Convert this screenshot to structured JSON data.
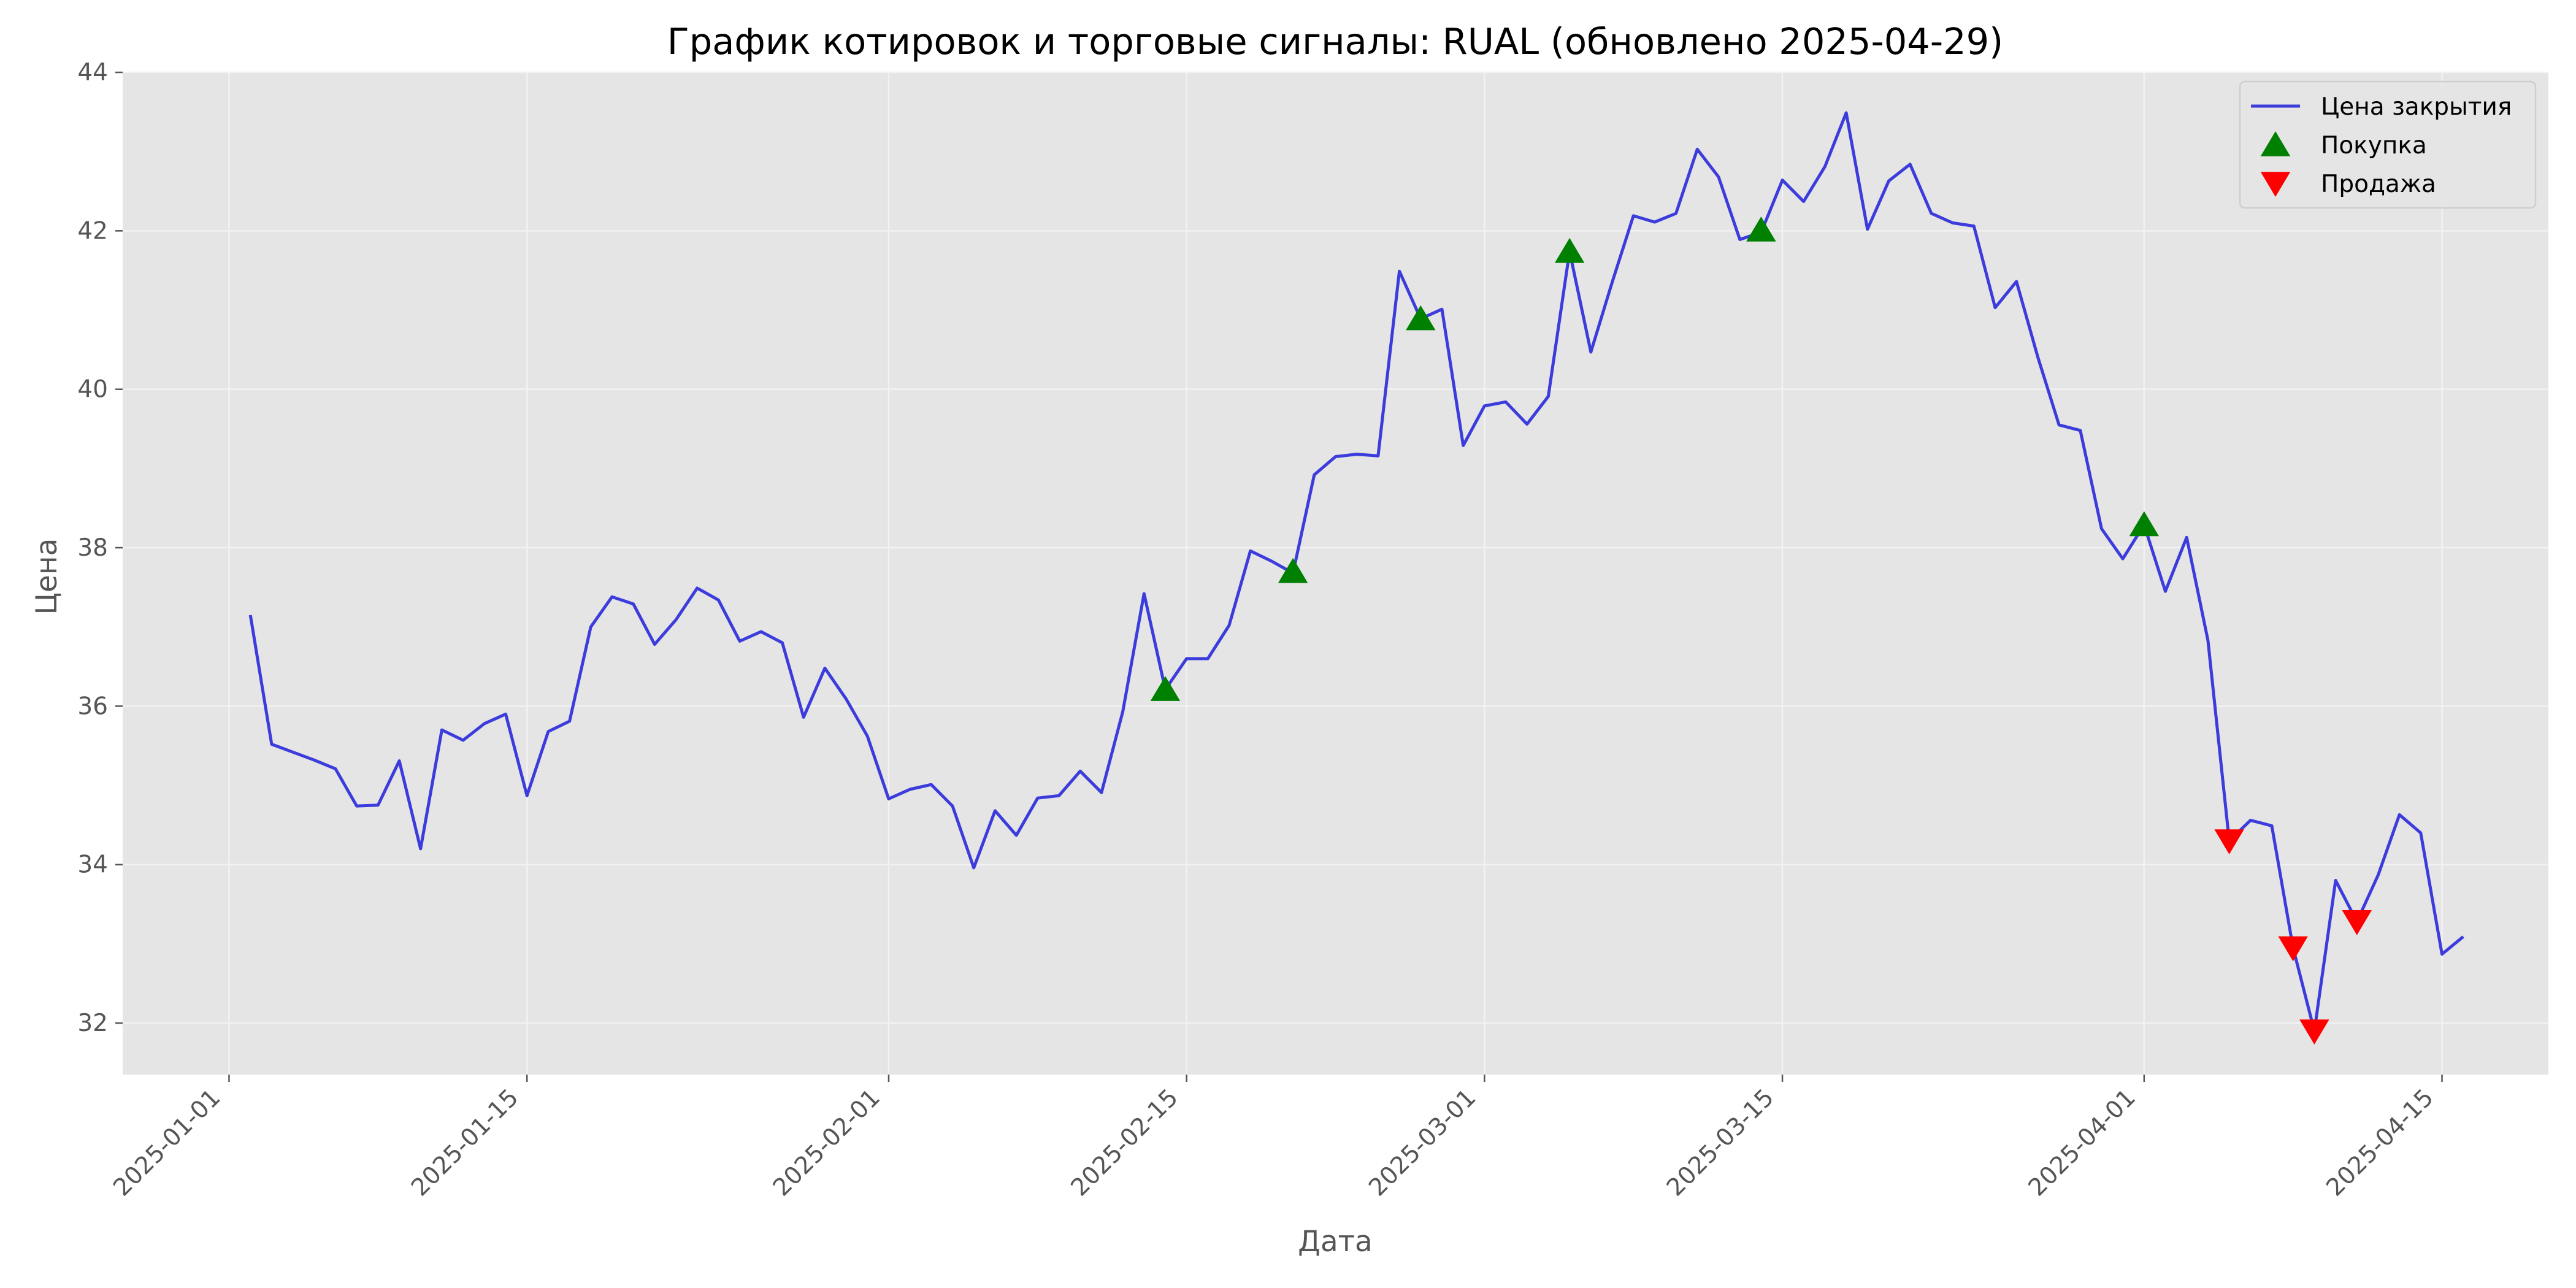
{
  "chart_data": {
    "type": "line",
    "title": "График котировок и торговые сигналы: RUAL (обновлено 2025-04-29)",
    "xlabel": "Дата",
    "ylabel": "Цена",
    "x_ticks": [
      "2025-01-01",
      "2025-01-15",
      "2025-02-01",
      "2025-02-15",
      "2025-03-01",
      "2025-03-15",
      "2025-04-01",
      "2025-04-15"
    ],
    "y_ticks": [
      32,
      34,
      36,
      38,
      40,
      42,
      44
    ],
    "xlim": [
      "2024-12-27",
      "2025-04-20"
    ],
    "ylim": [
      31.35,
      44.0
    ],
    "grid": true,
    "legend_position": "top-right",
    "colors": {
      "close": "#3c3cdc",
      "buy": "#008000",
      "sell": "#ff0000",
      "plot_bg": "#e5e5e5",
      "grid": "#f2f2f2"
    },
    "series": [
      {
        "name": "Цена закрытия",
        "kind": "line",
        "points": [
          [
            "2025-01-02",
            37.15
          ],
          [
            "2025-01-03",
            35.52
          ],
          [
            "2025-01-04",
            35.42
          ],
          [
            "2025-01-05",
            35.32
          ],
          [
            "2025-01-06",
            35.21
          ],
          [
            "2025-01-07",
            34.74
          ],
          [
            "2025-01-08",
            34.75
          ],
          [
            "2025-01-09",
            35.31
          ],
          [
            "2025-01-10",
            34.2
          ],
          [
            "2025-01-11",
            35.7
          ],
          [
            "2025-01-12",
            35.57
          ],
          [
            "2025-01-13",
            35.78
          ],
          [
            "2025-01-14",
            35.9
          ],
          [
            "2025-01-15",
            34.87
          ],
          [
            "2025-01-16",
            35.68
          ],
          [
            "2025-01-17",
            35.81
          ],
          [
            "2025-01-18",
            37.0
          ],
          [
            "2025-01-19",
            37.38
          ],
          [
            "2025-01-20",
            37.29
          ],
          [
            "2025-01-21",
            36.78
          ],
          [
            "2025-01-22",
            37.09
          ],
          [
            "2025-01-23",
            37.49
          ],
          [
            "2025-01-24",
            37.34
          ],
          [
            "2025-01-25",
            36.82
          ],
          [
            "2025-01-26",
            36.94
          ],
          [
            "2025-01-27",
            36.8
          ],
          [
            "2025-01-28",
            35.86
          ],
          [
            "2025-01-29",
            36.48
          ],
          [
            "2025-01-30",
            36.09
          ],
          [
            "2025-01-31",
            35.62
          ],
          [
            "2025-02-01",
            34.83
          ],
          [
            "2025-02-02",
            34.95
          ],
          [
            "2025-02-03",
            35.01
          ],
          [
            "2025-02-04",
            34.74
          ],
          [
            "2025-02-05",
            33.96
          ],
          [
            "2025-02-06",
            34.68
          ],
          [
            "2025-02-07",
            34.37
          ],
          [
            "2025-02-08",
            34.84
          ],
          [
            "2025-02-09",
            34.87
          ],
          [
            "2025-02-10",
            35.18
          ],
          [
            "2025-02-11",
            34.91
          ],
          [
            "2025-02-12",
            35.93
          ],
          [
            "2025-02-13",
            37.42
          ],
          [
            "2025-02-14",
            36.21
          ],
          [
            "2025-02-15",
            36.6
          ],
          [
            "2025-02-16",
            36.6
          ],
          [
            "2025-02-17",
            37.02
          ],
          [
            "2025-02-18",
            37.96
          ],
          [
            "2025-02-19",
            37.83
          ],
          [
            "2025-02-20",
            37.68
          ],
          [
            "2025-02-21",
            38.92
          ],
          [
            "2025-02-22",
            39.15
          ],
          [
            "2025-02-23",
            39.18
          ],
          [
            "2025-02-24",
            39.16
          ],
          [
            "2025-02-25",
            41.49
          ],
          [
            "2025-02-26",
            40.89
          ],
          [
            "2025-02-27",
            41.01
          ],
          [
            "2025-02-28",
            39.29
          ],
          [
            "2025-03-01",
            39.79
          ],
          [
            "2025-03-02",
            39.84
          ],
          [
            "2025-03-03",
            39.56
          ],
          [
            "2025-03-04",
            39.91
          ],
          [
            "2025-03-05",
            41.74
          ],
          [
            "2025-03-06",
            40.47
          ],
          [
            "2025-03-07",
            41.35
          ],
          [
            "2025-03-08",
            42.19
          ],
          [
            "2025-03-09",
            42.11
          ],
          [
            "2025-03-10",
            42.22
          ],
          [
            "2025-03-11",
            43.03
          ],
          [
            "2025-03-12",
            42.68
          ],
          [
            "2025-03-13",
            41.89
          ],
          [
            "2025-03-14",
            41.98
          ],
          [
            "2025-03-15",
            42.64
          ],
          [
            "2025-03-16",
            42.37
          ],
          [
            "2025-03-17",
            42.81
          ],
          [
            "2025-03-18",
            43.49
          ],
          [
            "2025-03-19",
            42.02
          ],
          [
            "2025-03-20",
            42.63
          ],
          [
            "2025-03-21",
            42.84
          ],
          [
            "2025-03-22",
            42.22
          ],
          [
            "2025-03-23",
            42.1
          ],
          [
            "2025-03-24",
            42.06
          ],
          [
            "2025-03-25",
            41.03
          ],
          [
            "2025-03-26",
            41.36
          ],
          [
            "2025-03-27",
            40.41
          ],
          [
            "2025-03-28",
            39.55
          ],
          [
            "2025-03-29",
            39.48
          ],
          [
            "2025-03-30",
            38.24
          ],
          [
            "2025-03-31",
            37.86
          ],
          [
            "2025-04-01",
            38.29
          ],
          [
            "2025-04-02",
            37.45
          ],
          [
            "2025-04-03",
            38.13
          ],
          [
            "2025-04-04",
            36.83
          ],
          [
            "2025-04-05",
            34.3
          ],
          [
            "2025-04-06",
            34.56
          ],
          [
            "2025-04-07",
            34.49
          ],
          [
            "2025-04-08",
            32.95
          ],
          [
            "2025-04-09",
            31.9
          ],
          [
            "2025-04-10",
            33.8
          ],
          [
            "2025-04-11",
            33.28
          ],
          [
            "2025-04-12",
            33.87
          ],
          [
            "2025-04-13",
            34.63
          ],
          [
            "2025-04-14",
            34.4
          ],
          [
            "2025-04-15",
            32.87
          ],
          [
            "2025-04-16",
            33.09
          ]
        ]
      },
      {
        "name": "Покупка",
        "kind": "marker-up",
        "points": [
          [
            "2025-02-14",
            36.21
          ],
          [
            "2025-02-20",
            37.7
          ],
          [
            "2025-02-26",
            40.89
          ],
          [
            "2025-03-05",
            41.74
          ],
          [
            "2025-03-14",
            42.01
          ],
          [
            "2025-04-01",
            38.29
          ]
        ]
      },
      {
        "name": "Продажа",
        "kind": "marker-down",
        "points": [
          [
            "2025-04-05",
            34.3
          ],
          [
            "2025-04-08",
            32.95
          ],
          [
            "2025-04-09",
            31.9
          ],
          [
            "2025-04-11",
            33.28
          ]
        ]
      }
    ]
  }
}
